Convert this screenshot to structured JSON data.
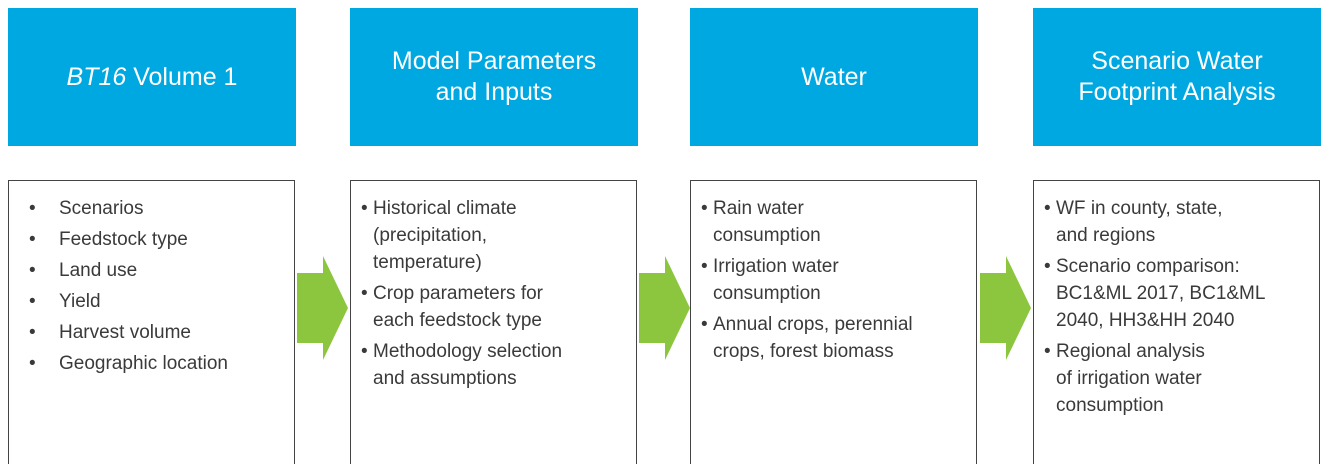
{
  "columns": [
    {
      "title": [
        {
          "text": "BT16",
          "italic": true
        },
        {
          "text": " Volume 1"
        }
      ],
      "items": [
        [
          "Scenarios"
        ],
        [
          "Feedstock type"
        ],
        [
          "Land use"
        ],
        [
          "Yield"
        ],
        [
          "Harvest volume"
        ],
        [
          "Geographic location"
        ]
      ]
    },
    {
      "title": [
        {
          "text": "Model Parameters"
        },
        {
          "text": "and Inputs",
          "newline": true
        }
      ],
      "items": [
        [
          "Historical climate",
          "(precipitation,",
          "temperature)"
        ],
        [
          "Crop parameters for",
          "each feedstock type"
        ],
        [
          "Methodology selection",
          "and assumptions"
        ]
      ]
    },
    {
      "title": [
        {
          "text": "Water"
        }
      ],
      "items": [
        [
          "Rain water",
          "consumption"
        ],
        [
          "Irrigation water",
          "consumption"
        ],
        [
          "Annual crops, perennial",
          "crops, forest biomass"
        ]
      ]
    },
    {
      "title": [
        {
          "text": "Scenario Water"
        },
        {
          "text": "Footprint Analysis",
          "newline": true
        }
      ],
      "items": [
        [
          "WF in county, state,",
          "and regions"
        ],
        [
          "Scenario comparison:",
          "BC1&ML 2017, BC1&ML",
          "2040, HH3&HH 2040"
        ],
        [
          "Regional analysis",
          "of irrigation water",
          "consumption"
        ]
      ]
    }
  ]
}
